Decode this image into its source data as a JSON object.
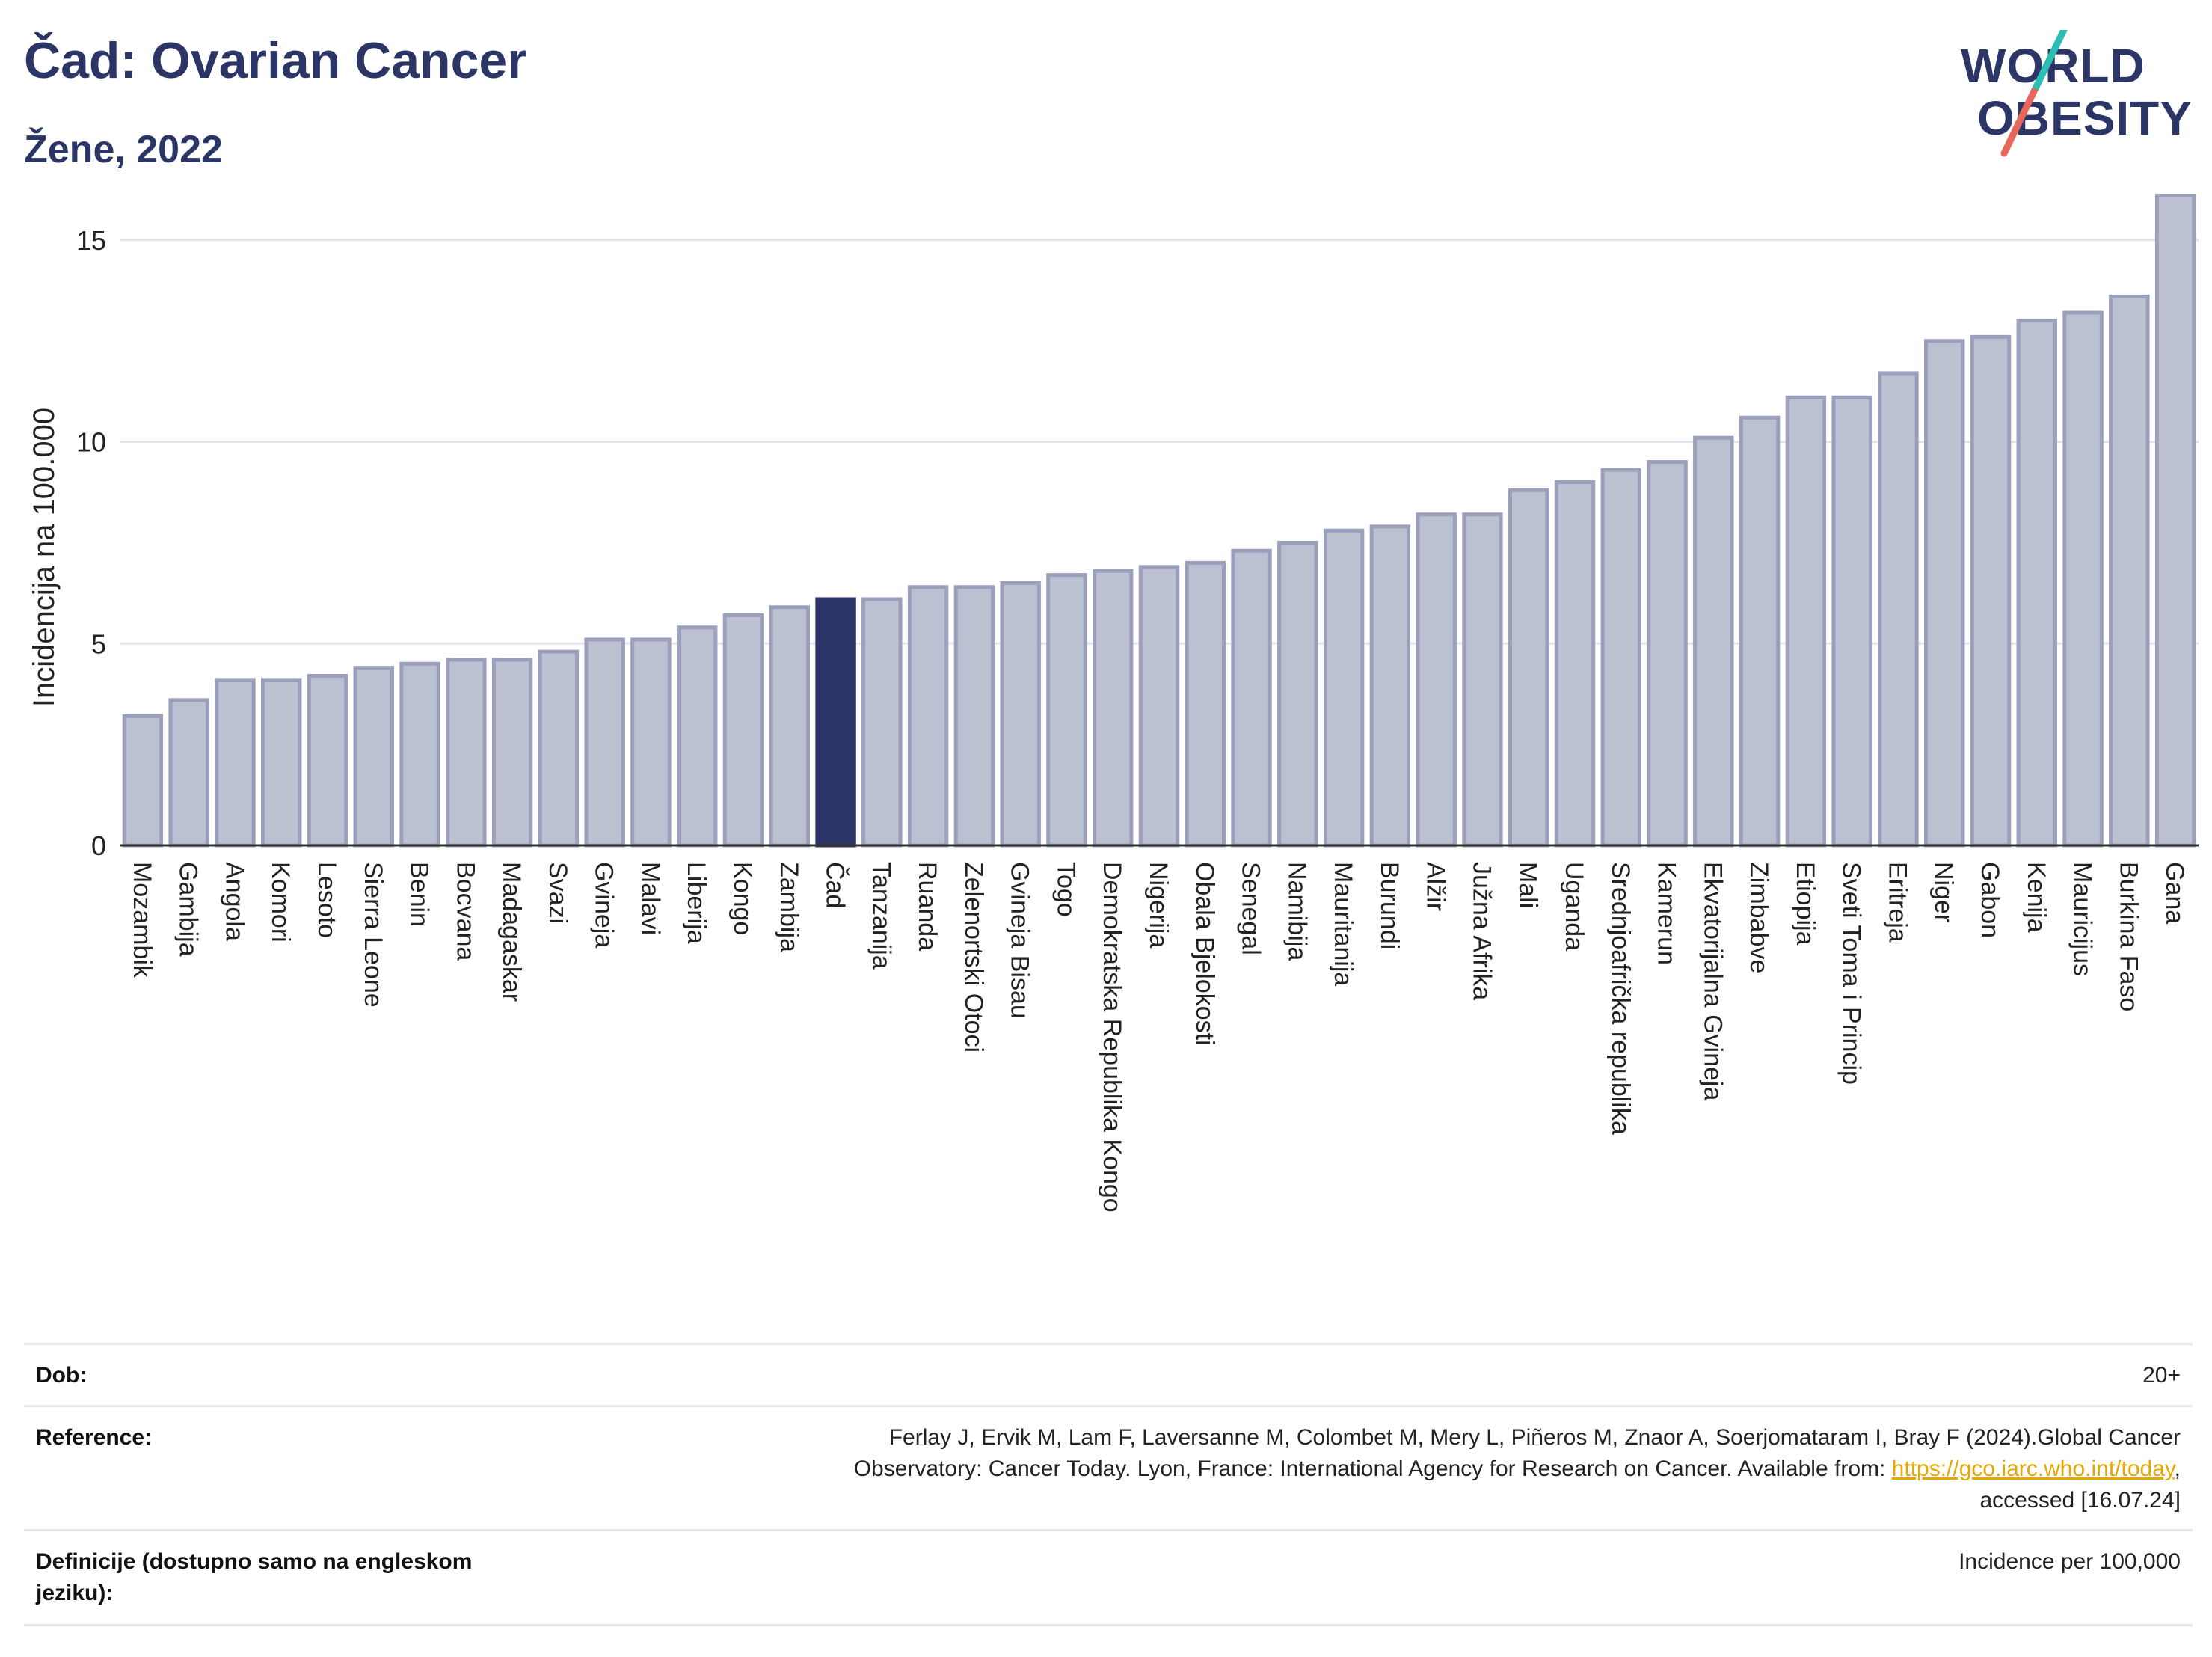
{
  "header": {
    "title": "Čad: Ovarian Cancer",
    "subtitle": "Žene, 2022"
  },
  "logo": {
    "line1": "WORLD",
    "line2": "OBESITY",
    "colors": {
      "text": "#2b3566",
      "slash_top": "#2bbfb3",
      "slash_bottom": "#e8665a"
    }
  },
  "chart_data": {
    "type": "bar",
    "ylabel": "Incidencija na 100.000",
    "ylim": [
      0,
      16.5
    ],
    "yticks": [
      0,
      5,
      10,
      15
    ],
    "grid": true,
    "highlight": "Čad",
    "colors": {
      "bar": "#bcc1d2",
      "bar_border": "#9aa0bb",
      "highlight": "#2b3566"
    },
    "categories": [
      "Mozambik",
      "Gambija",
      "Angola",
      "Komori",
      "Lesoto",
      "Sierra Leone",
      "Benin",
      "Bocvana",
      "Madagaskar",
      "Svazi",
      "Gvineja",
      "Malavi",
      "Liberija",
      "Kongo",
      "Zambija",
      "Čad",
      "Tanzanija",
      "Ruanda",
      "Zelenortski Otoci",
      "Gvineja Bisau",
      "Togo",
      "Demokratska Republika Kongo",
      "Nigerija",
      "Obala Bjelokosti",
      "Senegal",
      "Namibija",
      "Mauritanija",
      "Burundi",
      "Alžir",
      "Južna Afrika",
      "Mali",
      "Uganda",
      "Srednjoafrička republika",
      "Kamerun",
      "Ekvatorijalna Gvineja",
      "Zimbabve",
      "Etiopija",
      "Sveti Toma i Princip",
      "Eritreja",
      "Niger",
      "Gabon",
      "Kenija",
      "Mauricijus",
      "Burkina Faso",
      "Gana"
    ],
    "values": [
      3.2,
      3.6,
      4.1,
      4.1,
      4.2,
      4.4,
      4.5,
      4.6,
      4.6,
      4.8,
      5.1,
      5.1,
      5.4,
      5.7,
      5.9,
      6.1,
      6.1,
      6.4,
      6.4,
      6.5,
      6.7,
      6.8,
      6.9,
      7.0,
      7.3,
      7.5,
      7.8,
      7.9,
      8.2,
      8.2,
      8.8,
      9.0,
      9.3,
      9.5,
      10.1,
      10.6,
      11.1,
      11.1,
      11.7,
      12.5,
      12.6,
      13.0,
      13.2,
      13.6,
      16.1
    ]
  },
  "meta": {
    "age_label": "Dob:",
    "age_value": "20+",
    "reference_label": "Reference:",
    "reference_text_1": "Ferlay J, Ervik M, Lam F, Laversanne M, Colombet M, Mery L, Piñeros M, Znaor A, Soerjomataram I, Bray F (2024).Global Cancer",
    "reference_text_2": "Observatory: Cancer Today. Lyon, France: International Agency for Research on Cancer. Available from: ",
    "reference_link": "https://gco.iarc.who.int/today",
    "reference_text_3": ",",
    "reference_text_4": "accessed [16.07.24]",
    "definitions_label_1": "Definicije (dostupno samo na engleskom",
    "definitions_label_2": "jeziku):",
    "definitions_value": "Incidence per 100,000"
  }
}
